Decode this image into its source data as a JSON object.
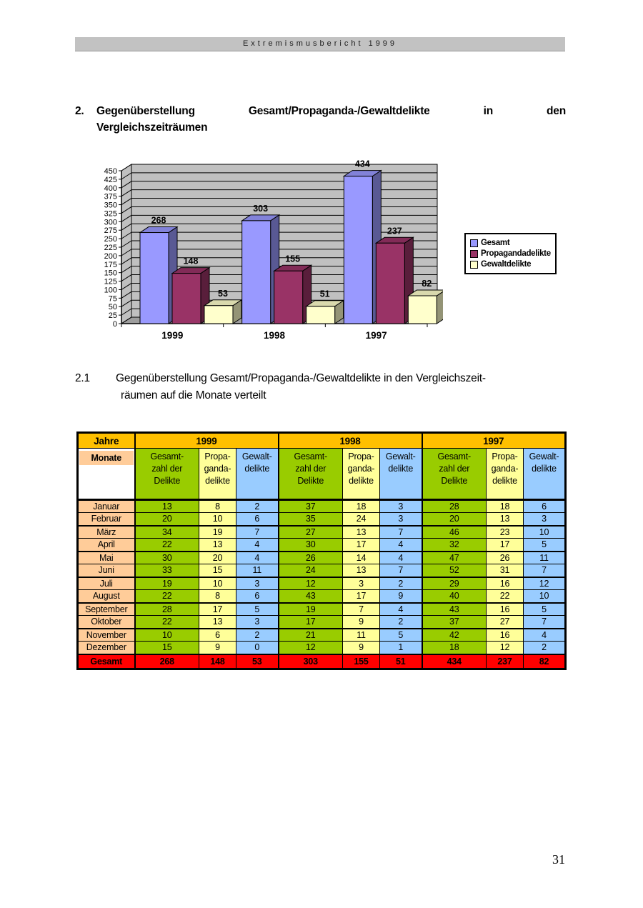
{
  "page": {
    "header_bar": "Extremismusbericht 1999",
    "page_number": "31"
  },
  "heading": {
    "number": "2.",
    "line1_tokens": [
      "Gegenüberstellung",
      "Gesamt/Propaganda-/Gewaltdelikte",
      "in",
      "den"
    ],
    "line2": "Vergleichszeiträumen"
  },
  "section": {
    "number": "2.1",
    "line1": "Gegenüberstellung Gesamt/Propaganda-/Gewaltdelikte in den Vergleichszeit-",
    "line2": "räumen auf die Monate verteilt"
  },
  "chart_data": {
    "type": "bar",
    "style": "3d-column",
    "categories": [
      "1999",
      "1998",
      "1997"
    ],
    "series": [
      {
        "name": "Gesamt",
        "values": [
          268,
          303,
          434
        ],
        "color": "#9999FF"
      },
      {
        "name": "Propagandadelikte",
        "values": [
          148,
          155,
          237
        ],
        "color": "#993366"
      },
      {
        "name": "Gewaltdelikte",
        "values": [
          53,
          51,
          82
        ],
        "color": "#FFFFCC"
      }
    ],
    "title": "",
    "xlabel": "",
    "ylabel": "",
    "ylim": [
      0,
      450
    ],
    "ytick_step": 25,
    "grid": true,
    "value_labels": true,
    "legend_position": "right",
    "wall_color": "#c0c0c0",
    "floor_color": "#9e9e9e"
  },
  "table": {
    "corner_top": "Jahre",
    "corner_bottom": "Monate",
    "year_headers": [
      "1999",
      "1998",
      "1997"
    ],
    "col_headers": [
      "Gesamt-\nzahl der\nDelikte",
      "Propa-\nganda-\ndelikte",
      "Gewalt-\ndelikte"
    ],
    "rows": [
      {
        "month": "Januar",
        "values": [
          13,
          8,
          2,
          37,
          18,
          3,
          28,
          18,
          6
        ]
      },
      {
        "month": "Februar",
        "values": [
          20,
          10,
          6,
          35,
          24,
          3,
          20,
          13,
          3
        ]
      },
      {
        "month": "März",
        "values": [
          34,
          19,
          7,
          27,
          13,
          7,
          46,
          23,
          10
        ]
      },
      {
        "month": "April",
        "values": [
          22,
          13,
          4,
          30,
          17,
          4,
          32,
          17,
          5
        ]
      },
      {
        "month": "Mai",
        "values": [
          30,
          20,
          4,
          26,
          14,
          4,
          47,
          26,
          11
        ]
      },
      {
        "month": "Juni",
        "values": [
          33,
          15,
          11,
          24,
          13,
          7,
          52,
          31,
          7
        ]
      },
      {
        "month": "Juli",
        "values": [
          19,
          10,
          3,
          12,
          3,
          2,
          29,
          16,
          12
        ]
      },
      {
        "month": "August",
        "values": [
          22,
          8,
          6,
          43,
          17,
          9,
          40,
          22,
          10
        ]
      },
      {
        "month": "September",
        "values": [
          28,
          17,
          5,
          19,
          7,
          4,
          43,
          16,
          5
        ]
      },
      {
        "month": "Oktober",
        "values": [
          22,
          13,
          3,
          17,
          9,
          2,
          37,
          27,
          7
        ]
      },
      {
        "month": "November",
        "values": [
          10,
          6,
          2,
          21,
          11,
          5,
          42,
          16,
          4
        ]
      },
      {
        "month": "Dezember",
        "values": [
          15,
          9,
          0,
          12,
          9,
          1,
          18,
          12,
          2
        ]
      }
    ],
    "total_label": "Gesamt",
    "totals": [
      268,
      148,
      53,
      303,
      155,
      51,
      434,
      237,
      82
    ],
    "colors": {
      "year_header": "#FFC000",
      "month": "#FFCC99",
      "gesamt": "#99CC00",
      "propaganda": "#FFFF99",
      "gewalt": "#99CCFF",
      "total_row": "#FF0000"
    }
  }
}
